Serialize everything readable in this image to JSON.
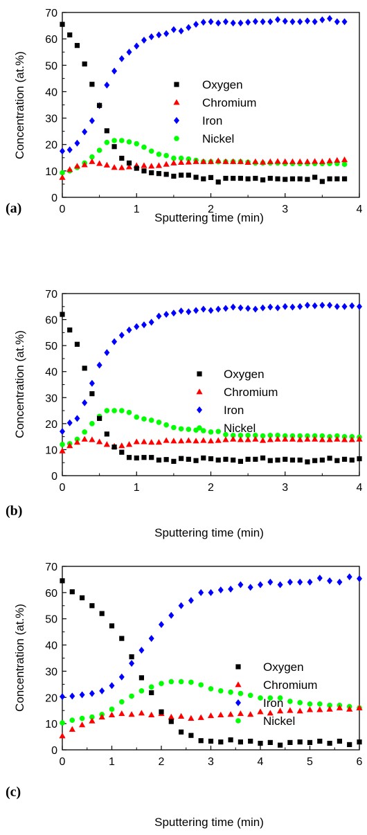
{
  "colors": {
    "Oxygen": "#000000",
    "Chromium": "#ff0000",
    "Iron": "#0000ff",
    "Nickel": "#00ff00"
  },
  "chart_data": [
    {
      "type": "scatter",
      "panel_label": "(a)",
      "xlabel": "Sputtering time (min)",
      "ylabel": "Concentration (at.%)",
      "xlim": [
        0,
        4
      ],
      "ylim": [
        0,
        70
      ],
      "xticks": [
        0,
        1,
        2,
        3,
        4
      ],
      "yticks": [
        0,
        10,
        20,
        30,
        40,
        50,
        60,
        70
      ],
      "legend_position": "center-right",
      "grid": false,
      "series": [
        {
          "name": "Oxygen",
          "marker": "square",
          "x": [
            0,
            0.1,
            0.2,
            0.3,
            0.4,
            0.5,
            0.6,
            0.7,
            0.8,
            0.9,
            1.0,
            1.1,
            1.2,
            1.3,
            1.4,
            1.5,
            1.6,
            1.7,
            1.8,
            1.9,
            2.0,
            2.1,
            2.2,
            2.3,
            2.4,
            2.5,
            2.6,
            2.7,
            2.8,
            2.9,
            3.0,
            3.1,
            3.2,
            3.3,
            3.4,
            3.5,
            3.6,
            3.7,
            3.8
          ],
          "y": [
            65.5,
            61.5,
            57.5,
            50.5,
            42.8,
            34.8,
            25.2,
            19.2,
            14.8,
            13.0,
            11.0,
            10.0,
            9.3,
            9.0,
            8.7,
            8.0,
            8.4,
            8.4,
            7.6,
            7.0,
            7.5,
            5.8,
            7.2,
            7.2,
            7.2,
            7.0,
            7.2,
            6.6,
            7.2,
            7.0,
            6.8,
            7.0,
            7.0,
            6.8,
            7.6,
            6.0,
            7.0,
            7.0,
            7.0
          ]
        },
        {
          "name": "Chromium",
          "marker": "triangle",
          "x": [
            0,
            0.1,
            0.2,
            0.3,
            0.4,
            0.5,
            0.6,
            0.7,
            0.8,
            0.9,
            1.0,
            1.1,
            1.2,
            1.3,
            1.4,
            1.5,
            1.6,
            1.7,
            1.8,
            1.9,
            2.0,
            2.1,
            2.2,
            2.3,
            2.4,
            2.5,
            2.6,
            2.7,
            2.8,
            2.9,
            3.0,
            3.1,
            3.2,
            3.3,
            3.4,
            3.5,
            3.6,
            3.7,
            3.8
          ],
          "y": [
            7.5,
            10.5,
            11.8,
            12.3,
            13.5,
            12.8,
            12.2,
            11.3,
            11.2,
            11.5,
            12.0,
            12.0,
            11.8,
            12.0,
            12.5,
            13.0,
            13.2,
            13.3,
            13.5,
            13.5,
            13.5,
            13.8,
            13.5,
            13.5,
            13.5,
            13.2,
            13.5,
            13.3,
            13.5,
            13.6,
            13.5,
            13.5,
            13.5,
            13.5,
            13.6,
            13.5,
            13.8,
            14.0,
            14.2
          ]
        },
        {
          "name": "Iron",
          "marker": "diamond",
          "x": [
            0,
            0.1,
            0.2,
            0.3,
            0.4,
            0.5,
            0.6,
            0.7,
            0.8,
            0.9,
            1.0,
            1.1,
            1.2,
            1.3,
            1.4,
            1.5,
            1.6,
            1.7,
            1.8,
            1.9,
            2.0,
            2.1,
            2.2,
            2.3,
            2.4,
            2.5,
            2.6,
            2.7,
            2.8,
            2.9,
            3.0,
            3.1,
            3.2,
            3.3,
            3.4,
            3.5,
            3.6,
            3.7,
            3.8
          ],
          "y": [
            17.5,
            18.0,
            20.5,
            24.8,
            29.0,
            34.7,
            42.5,
            47.8,
            52.5,
            55.0,
            57.3,
            59.5,
            60.8,
            61.5,
            62.0,
            63.5,
            63.0,
            64.3,
            65.5,
            66.3,
            66.5,
            66.0,
            66.5,
            66.0,
            66.0,
            66.3,
            66.6,
            66.5,
            66.5,
            67.3,
            66.7,
            66.5,
            66.5,
            66.8,
            66.5,
            67.2,
            67.7,
            66.5,
            66.5
          ]
        },
        {
          "name": "Nickel",
          "marker": "circle",
          "x": [
            0,
            0.1,
            0.2,
            0.3,
            0.4,
            0.5,
            0.6,
            0.7,
            0.8,
            0.9,
            1.0,
            1.1,
            1.2,
            1.3,
            1.4,
            1.5,
            1.6,
            1.7,
            1.8,
            1.9,
            2.0,
            2.1,
            2.2,
            2.3,
            2.4,
            2.5,
            2.6,
            2.7,
            2.8,
            2.9,
            3.0,
            3.1,
            3.2,
            3.3,
            3.4,
            3.5,
            3.6,
            3.7,
            3.8
          ],
          "y": [
            9.3,
            10.0,
            11.3,
            13.0,
            15.3,
            17.8,
            20.8,
            21.5,
            21.5,
            21.0,
            20.3,
            19.0,
            17.5,
            16.3,
            15.8,
            14.8,
            14.8,
            14.5,
            14.0,
            13.5,
            13.5,
            13.5,
            13.5,
            13.5,
            13.5,
            13.3,
            13.0,
            13.0,
            13.0,
            13.0,
            12.8,
            12.8,
            12.8,
            12.8,
            12.8,
            12.8,
            12.8,
            12.8,
            12.5
          ]
        }
      ]
    },
    {
      "type": "scatter",
      "panel_label": "(b)",
      "xlabel": "Sputtering time (min)",
      "ylabel": "Concentration (at.%)",
      "xlim": [
        0,
        4
      ],
      "ylim": [
        0,
        70
      ],
      "xticks": [
        0,
        1,
        2,
        3,
        4
      ],
      "yticks": [
        0,
        10,
        20,
        30,
        40,
        50,
        60,
        70
      ],
      "legend_position": "center-right",
      "grid": false,
      "series": [
        {
          "name": "Oxygen",
          "marker": "square",
          "x": [
            0,
            0.1,
            0.2,
            0.3,
            0.4,
            0.5,
            0.6,
            0.7,
            0.8,
            0.9,
            1.0,
            1.1,
            1.2,
            1.3,
            1.4,
            1.5,
            1.6,
            1.7,
            1.8,
            1.9,
            2.0,
            2.1,
            2.2,
            2.3,
            2.4,
            2.5,
            2.6,
            2.7,
            2.8,
            2.9,
            3.0,
            3.1,
            3.2,
            3.3,
            3.4,
            3.5,
            3.6,
            3.7,
            3.8,
            3.9,
            4.0
          ],
          "y": [
            62.0,
            56.0,
            50.5,
            41.3,
            31.5,
            22.0,
            16.0,
            11.0,
            9.0,
            7.0,
            6.8,
            7.0,
            7.0,
            6.0,
            6.2,
            5.5,
            6.6,
            6.3,
            5.8,
            6.8,
            6.5,
            6.0,
            6.3,
            6.0,
            5.5,
            6.3,
            6.3,
            6.8,
            5.8,
            6.0,
            6.3,
            6.0,
            6.0,
            5.3,
            5.8,
            6.0,
            6.7,
            5.8,
            6.3,
            6.0,
            6.5
          ]
        },
        {
          "name": "Chromium",
          "marker": "triangle",
          "x": [
            0,
            0.1,
            0.2,
            0.3,
            0.4,
            0.5,
            0.6,
            0.7,
            0.8,
            0.9,
            1.0,
            1.1,
            1.2,
            1.3,
            1.4,
            1.5,
            1.6,
            1.7,
            1.8,
            1.9,
            2.0,
            2.1,
            2.2,
            2.3,
            2.4,
            2.5,
            2.6,
            2.7,
            2.8,
            2.9,
            3.0,
            3.1,
            3.2,
            3.3,
            3.4,
            3.5,
            3.6,
            3.7,
            3.8,
            3.9,
            4.0
          ],
          "y": [
            9.5,
            11.5,
            12.8,
            14.0,
            13.8,
            13.0,
            12.0,
            11.3,
            11.5,
            12.0,
            13.0,
            13.0,
            12.8,
            12.8,
            13.5,
            13.3,
            13.3,
            13.5,
            13.3,
            13.5,
            13.3,
            13.5,
            13.8,
            14.0,
            13.8,
            13.8,
            14.0,
            13.5,
            13.8,
            14.0,
            14.0,
            14.0,
            13.8,
            14.0,
            14.0,
            13.8,
            13.8,
            14.0,
            13.8,
            13.8,
            14.0
          ]
        },
        {
          "name": "Iron",
          "marker": "diamond",
          "x": [
            0,
            0.1,
            0.2,
            0.3,
            0.4,
            0.5,
            0.6,
            0.7,
            0.8,
            0.9,
            1.0,
            1.1,
            1.2,
            1.3,
            1.4,
            1.5,
            1.6,
            1.7,
            1.8,
            1.9,
            2.0,
            2.1,
            2.2,
            2.3,
            2.4,
            2.5,
            2.6,
            2.7,
            2.8,
            2.9,
            3.0,
            3.1,
            3.2,
            3.3,
            3.4,
            3.5,
            3.6,
            3.7,
            3.8,
            3.9,
            4.0
          ],
          "y": [
            17.0,
            20.3,
            22.0,
            28.0,
            35.5,
            42.5,
            47.3,
            51.5,
            54.0,
            56.0,
            57.3,
            58.0,
            59.0,
            61.3,
            62.0,
            62.5,
            63.3,
            63.0,
            63.5,
            64.0,
            63.5,
            64.0,
            64.3,
            64.8,
            64.5,
            64.3,
            64.0,
            64.5,
            64.8,
            64.5,
            65.0,
            64.8,
            65.0,
            65.5,
            65.3,
            65.5,
            65.5,
            65.0,
            65.0,
            65.3,
            65.0
          ]
        },
        {
          "name": "Nickel",
          "marker": "circle",
          "x": [
            0,
            0.1,
            0.2,
            0.3,
            0.4,
            0.5,
            0.6,
            0.7,
            0.8,
            0.9,
            1.0,
            1.1,
            1.2,
            1.3,
            1.4,
            1.5,
            1.6,
            1.7,
            1.8,
            1.9,
            2.0,
            2.1,
            2.2,
            2.3,
            2.4,
            2.5,
            2.6,
            2.7,
            2.8,
            2.9,
            3.0,
            3.1,
            3.2,
            3.3,
            3.4,
            3.5,
            3.6,
            3.7,
            3.8,
            3.9,
            4.0
          ],
          "y": [
            12.0,
            12.3,
            14.0,
            16.8,
            20.0,
            22.8,
            25.0,
            25.0,
            25.0,
            24.3,
            22.5,
            21.8,
            21.3,
            20.5,
            19.5,
            18.5,
            18.0,
            17.8,
            17.5,
            17.3,
            16.8,
            17.0,
            15.8,
            15.5,
            15.5,
            15.5,
            15.5,
            15.3,
            15.5,
            15.5,
            15.3,
            15.3,
            15.3,
            15.3,
            15.3,
            15.3,
            15.0,
            15.3,
            15.0,
            15.0,
            14.8
          ]
        }
      ]
    },
    {
      "type": "scatter",
      "panel_label": "(c)",
      "xlabel": "Sputtering time (min)",
      "ylabel": "Concentration (at.%)",
      "xlim": [
        0,
        6
      ],
      "ylim": [
        0,
        70
      ],
      "xticks": [
        0,
        1,
        2,
        3,
        4,
        5,
        6
      ],
      "yticks": [
        0,
        10,
        20,
        30,
        40,
        50,
        60,
        70
      ],
      "legend_position": "center-right",
      "grid": false,
      "series": [
        {
          "name": "Oxygen",
          "marker": "square",
          "x": [
            0,
            0.2,
            0.4,
            0.6,
            0.8,
            1.0,
            1.2,
            1.4,
            1.6,
            1.8,
            2.0,
            2.2,
            2.4,
            2.6,
            2.8,
            3.0,
            3.2,
            3.4,
            3.6,
            3.8,
            4.0,
            4.2,
            4.4,
            4.6,
            4.8,
            5.0,
            5.2,
            5.4,
            5.6,
            5.8,
            6.0
          ],
          "y": [
            64.5,
            60.3,
            58.0,
            55.0,
            52.0,
            47.3,
            42.5,
            35.5,
            27.5,
            21.8,
            14.5,
            10.8,
            6.8,
            5.5,
            3.5,
            3.3,
            3.0,
            3.8,
            3.0,
            3.3,
            2.5,
            2.8,
            1.8,
            2.8,
            3.0,
            2.8,
            3.3,
            2.5,
            3.3,
            2.0,
            3.0
          ]
        },
        {
          "name": "Chromium",
          "marker": "triangle",
          "x": [
            0,
            0.2,
            0.4,
            0.6,
            0.8,
            1.0,
            1.2,
            1.4,
            1.6,
            1.8,
            2.0,
            2.2,
            2.4,
            2.6,
            2.8,
            3.0,
            3.2,
            3.4,
            3.6,
            3.8,
            4.0,
            4.2,
            4.4,
            4.6,
            4.8,
            5.0,
            5.2,
            5.4,
            5.6,
            5.8,
            6.0
          ],
          "y": [
            5.3,
            7.8,
            9.5,
            11.0,
            12.5,
            13.3,
            13.8,
            13.5,
            14.0,
            13.3,
            13.8,
            12.5,
            12.8,
            12.0,
            12.3,
            13.0,
            13.3,
            13.5,
            13.8,
            13.5,
            14.5,
            14.0,
            14.8,
            15.0,
            14.8,
            15.3,
            15.3,
            15.5,
            16.0,
            15.5,
            16.0
          ]
        },
        {
          "name": "Iron",
          "marker": "diamond",
          "x": [
            0,
            0.2,
            0.4,
            0.6,
            0.8,
            1.0,
            1.2,
            1.4,
            1.6,
            1.8,
            2.0,
            2.2,
            2.4,
            2.6,
            2.8,
            3.0,
            3.2,
            3.4,
            3.6,
            3.8,
            4.0,
            4.2,
            4.4,
            4.6,
            4.8,
            5.0,
            5.2,
            5.4,
            5.6,
            5.8,
            6.0
          ],
          "y": [
            20.3,
            20.5,
            21.0,
            21.5,
            22.5,
            24.5,
            27.8,
            33.0,
            38.0,
            42.5,
            47.8,
            51.3,
            55.0,
            57.0,
            60.0,
            60.0,
            61.0,
            61.3,
            63.0,
            62.0,
            63.0,
            64.0,
            63.0,
            64.0,
            64.0,
            64.0,
            65.5,
            64.5,
            64.0,
            66.0,
            65.3
          ]
        },
        {
          "name": "Nickel",
          "marker": "circle",
          "x": [
            0,
            0.2,
            0.4,
            0.6,
            0.8,
            1.0,
            1.2,
            1.4,
            1.6,
            1.8,
            2.0,
            2.2,
            2.4,
            2.6,
            2.8,
            3.0,
            3.2,
            3.4,
            3.6,
            3.8,
            4.0,
            4.2,
            4.4,
            4.6,
            4.8,
            5.0,
            5.2,
            5.4,
            5.6,
            5.8,
            6.0
          ],
          "y": [
            10.3,
            11.3,
            12.0,
            12.5,
            13.5,
            15.5,
            18.3,
            20.5,
            22.5,
            24.0,
            25.3,
            26.0,
            26.0,
            25.8,
            24.8,
            23.3,
            22.5,
            22.0,
            21.5,
            20.8,
            19.8,
            19.8,
            19.8,
            18.5,
            18.0,
            17.5,
            17.5,
            17.0,
            17.0,
            16.5,
            16.0
          ]
        }
      ]
    }
  ]
}
